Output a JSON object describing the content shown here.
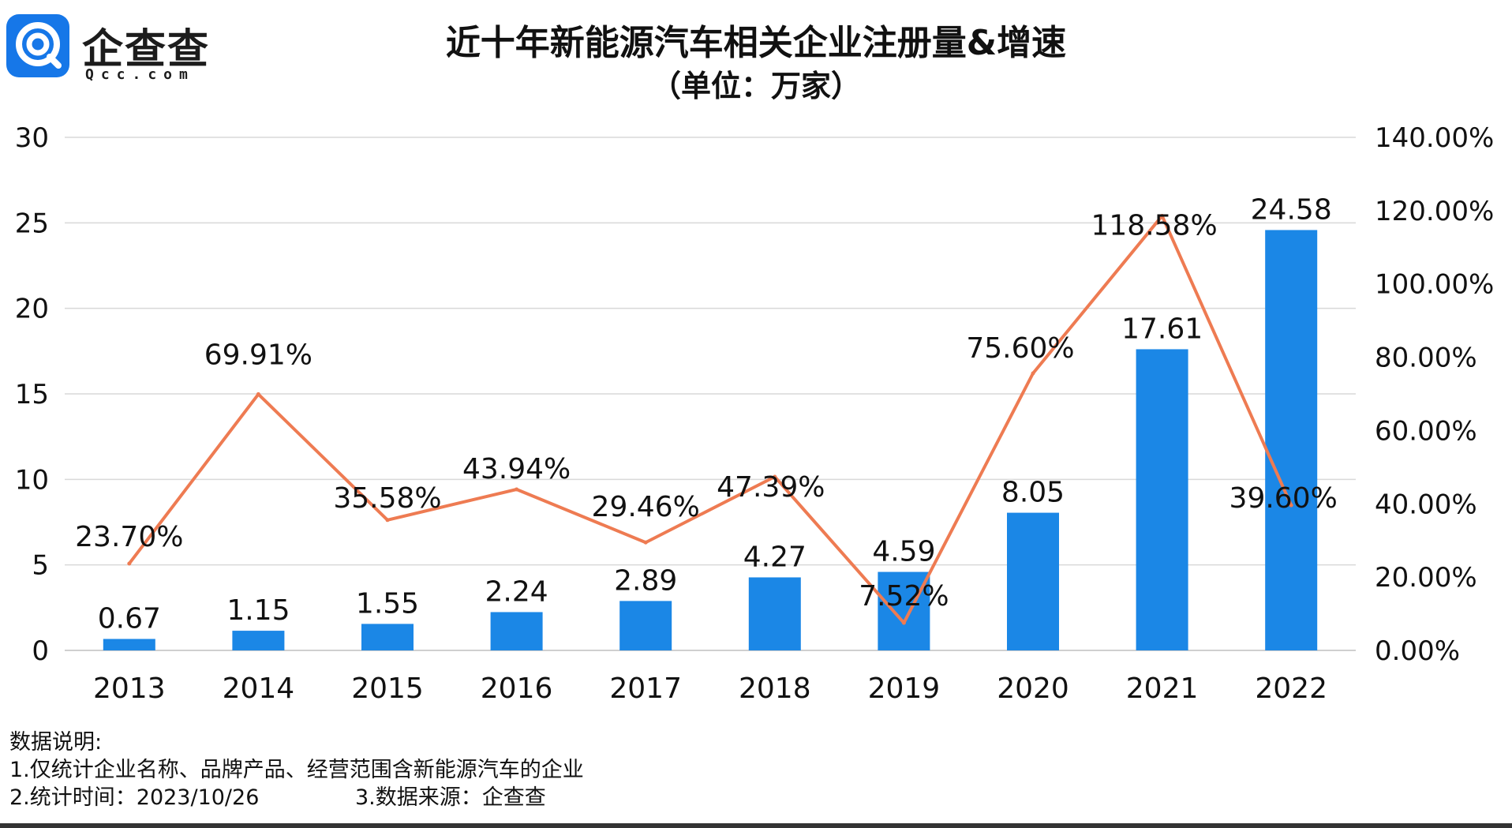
{
  "logo": {
    "name": "企查查",
    "domain": "Qcc.com"
  },
  "chart_data": {
    "type": "bar",
    "title": "近十年新能源汽车相关企业注册量&增速",
    "subtitle": "（单位：万家）",
    "categories": [
      "2013",
      "2014",
      "2015",
      "2016",
      "2017",
      "2018",
      "2019",
      "2020",
      "2021",
      "2022"
    ],
    "series": [
      {
        "type": "bar",
        "axis": "left",
        "color": "#1b87e6",
        "values": [
          0.67,
          1.15,
          1.55,
          2.24,
          2.89,
          4.27,
          4.59,
          8.05,
          17.61,
          24.58
        ],
        "labels": [
          "0.67",
          "1.15",
          "1.55",
          "2.24",
          "2.89",
          "4.27",
          "4.59",
          "8.05",
          "17.61",
          "24.58"
        ]
      },
      {
        "type": "line",
        "axis": "right",
        "color": "#ee7b52",
        "values": [
          23.7,
          69.91,
          35.58,
          43.94,
          29.46,
          47.39,
          7.52,
          75.6,
          118.58,
          39.6
        ],
        "labels": [
          "23.70%",
          "69.91%",
          "35.58%",
          "43.94%",
          "29.46%",
          "47.39%",
          "7.52%",
          "75.60%",
          "118.58%",
          "39.60%"
        ]
      }
    ],
    "y_left": {
      "ylim": [
        0,
        30
      ],
      "ticks": [
        "0",
        "5",
        "10",
        "15",
        "20",
        "25",
        "30"
      ]
    },
    "y_right": {
      "ylim": [
        0,
        140
      ],
      "ticks": [
        "0.00%",
        "20.00%",
        "40.00%",
        "60.00%",
        "80.00%",
        "100.00%",
        "120.00%",
        "140.00%"
      ]
    },
    "grid": true
  },
  "notes": {
    "heading": "数据说明:",
    "line1": "1.仅统计企业名称、品牌产品、经营范围含新能源汽车的企业",
    "line2": "2.统计时间：2023/10/26",
    "line3": "3.数据来源：企查查"
  }
}
